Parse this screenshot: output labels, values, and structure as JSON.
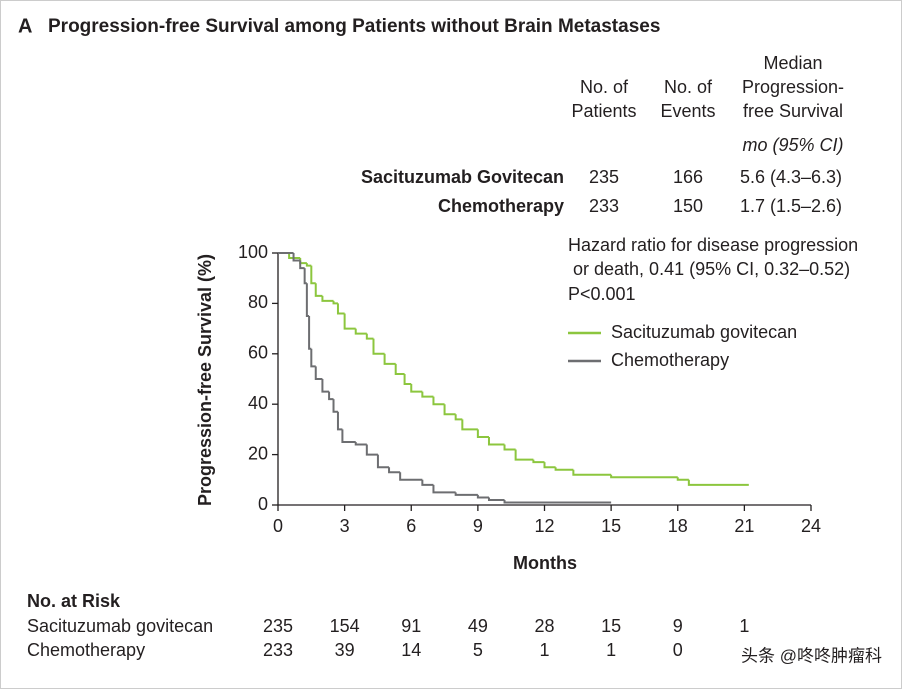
{
  "title_letter": "A",
  "chart_data": {
    "type": "step",
    "title": "Progression-free Survival among Patients without Brain Metastases",
    "x_label": "Months",
    "y_label": "Progression-free Survival (%)",
    "xlim": [
      0,
      24
    ],
    "ylim": [
      0,
      100
    ],
    "xticks": [
      0,
      3,
      6,
      9,
      12,
      15,
      18,
      21,
      24
    ],
    "yticks": [
      0,
      20,
      40,
      60,
      80,
      100
    ],
    "series": [
      {
        "name": "Sacituzumab govitecan",
        "color": "#8cc63e",
        "x": [
          0,
          0.5,
          1,
          1.3,
          1.5,
          1.7,
          2,
          2.5,
          2.7,
          3,
          3.5,
          4,
          4.3,
          4.8,
          5.3,
          5.7,
          6,
          6.5,
          7,
          7.5,
          8,
          8.3,
          9,
          9.5,
          10.2,
          10.7,
          11.5,
          12,
          12.5,
          13.3,
          15,
          18,
          18.5,
          21.2
        ],
        "values": [
          100,
          98,
          96,
          95,
          88,
          83,
          81,
          80,
          76,
          70,
          68,
          66,
          60,
          56,
          52,
          48,
          45,
          43,
          40,
          36,
          34,
          30,
          27,
          24,
          22,
          18,
          17,
          15,
          14,
          12,
          11,
          10,
          8,
          8
        ]
      },
      {
        "name": "Chemotherapy",
        "color": "#6d6e71",
        "x": [
          0,
          0.7,
          1,
          1.2,
          1.3,
          1.4,
          1.5,
          1.7,
          2,
          2.3,
          2.5,
          2.7,
          2.9,
          3.5,
          4,
          4.5,
          5,
          5.5,
          6.5,
          7,
          8,
          9,
          9.5,
          10.2,
          15
        ],
        "values": [
          100,
          97,
          94,
          88,
          75,
          62,
          55,
          50,
          45,
          42,
          37,
          30,
          25,
          24,
          20,
          15,
          13,
          10,
          8,
          5,
          4,
          3,
          2,
          1,
          1
        ]
      }
    ],
    "annotation": [
      "Hazard ratio for disease progression",
      "or death, 0.41 (95% CI, 0.32–0.52)",
      "P<0.001"
    ]
  },
  "summary_table": {
    "headers": [
      [
        "No. of",
        "Patients"
      ],
      [
        "No. of",
        "Events"
      ],
      [
        "Median",
        "Progression-",
        "free Survival"
      ]
    ],
    "unit": "mo (95% CI)",
    "rows": [
      [
        "Sacituzumab Govitecan",
        235,
        166,
        "5.6 (4.3–6.3)"
      ],
      [
        "Chemotherapy",
        233,
        150,
        "1.7 (1.5–2.6)"
      ]
    ]
  },
  "at_risk": {
    "title": "No. at Risk",
    "rows": [
      {
        "name": "Sacituzumab govitecan",
        "values": [
          235,
          154,
          91,
          49,
          28,
          15,
          9,
          1
        ]
      },
      {
        "name": "Chemotherapy",
        "values": [
          233,
          39,
          14,
          5,
          1,
          1,
          0
        ]
      }
    ]
  },
  "watermark": "头条 @咚咚肿瘤科"
}
